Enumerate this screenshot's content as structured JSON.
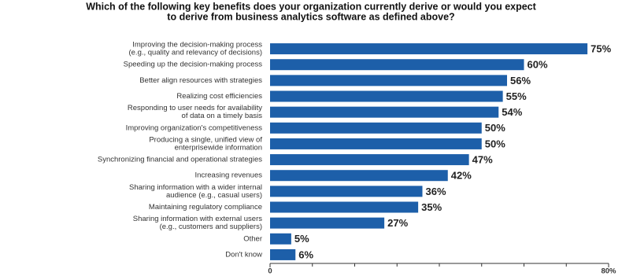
{
  "chart_data": {
    "type": "hbar",
    "title": [
      "Which of the following key benefits does your organization currently derive or would you expect",
      "to derive from business analytics software as defined above?"
    ],
    "categories": [
      [
        "Improving the decision-making process",
        "(e.g., quality and relevancy of decisions)"
      ],
      [
        "Speeding up the decision-making process"
      ],
      [
        "Better align resources with strategies"
      ],
      [
        "Realizing cost efficiencies"
      ],
      [
        "Responding to user needs for availability",
        "of data on a timely basis"
      ],
      [
        "Improving organization's competitiveness"
      ],
      [
        "Producing a single, unified view of",
        "enterprisewide information"
      ],
      [
        "Synchronizing financial and operational strategies"
      ],
      [
        "Increasing revenues"
      ],
      [
        "Sharing information with a wider internal",
        "audience (e.g., casual users)"
      ],
      [
        "Maintaining regulatory compliance"
      ],
      [
        "Sharing information with external users",
        "(e.g., customers and suppliers)"
      ],
      [
        "Other"
      ],
      [
        "Don't know"
      ]
    ],
    "values": [
      75,
      60,
      56,
      55,
      54,
      50,
      50,
      47,
      42,
      36,
      35,
      27,
      5,
      6
    ],
    "value_labels": [
      "75%",
      "60%",
      "56%",
      "55%",
      "54%",
      "50%",
      "50%",
      "47%",
      "42%",
      "36%",
      "35%",
      "27%",
      "5%",
      "6%"
    ],
    "color": "#1d5fa9",
    "xlim": [
      0,
      80
    ],
    "xticks": [
      0,
      {
        "value": 80,
        "label": "80%"
      }
    ],
    "minor_xticks": [
      10,
      20,
      30,
      40,
      50,
      60,
      70
    ]
  }
}
